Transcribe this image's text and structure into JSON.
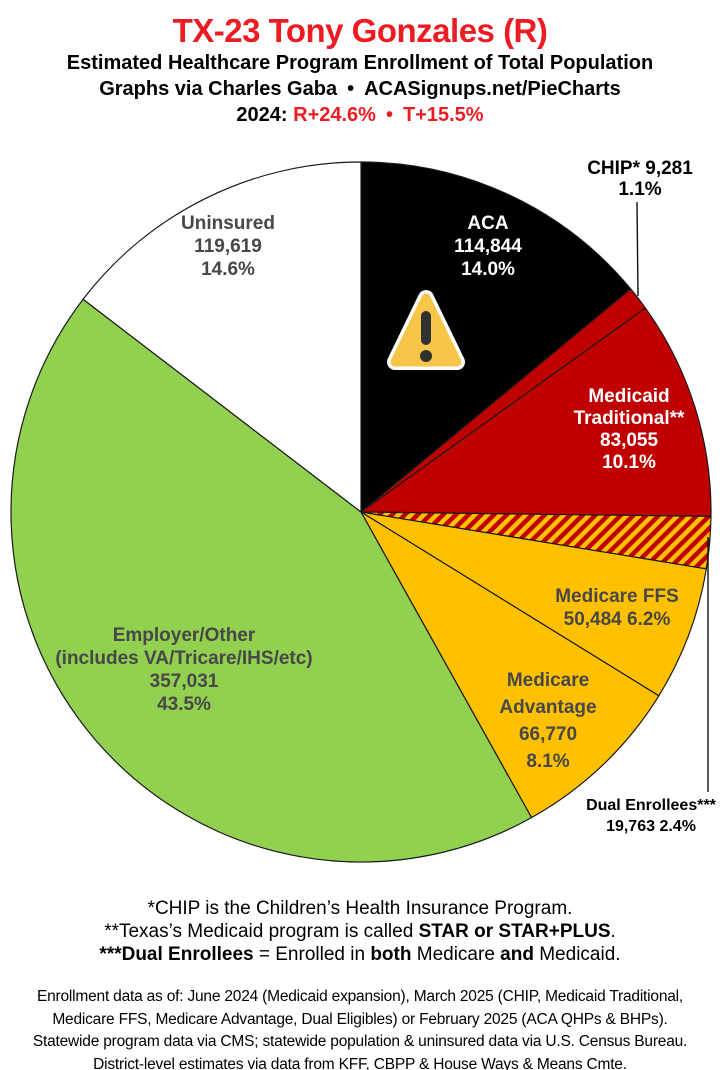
{
  "header": {
    "title": "TX-23 Tony Gonzales (R)",
    "title_color": "#EE1B23",
    "subtitle": "Estimated Healthcare Program Enrollment of Total Population",
    "credit_left": "Graphs via Charles Gaba",
    "credit_bullet": "•",
    "credit_right": "ACASignups.net/PieCharts",
    "partisan_year": "2024:",
    "partisan_r": "R+24.6%",
    "partisan_bullet": "•",
    "partisan_t": "T+15.5%",
    "partisan_color": "#EE1B23"
  },
  "chart_data": {
    "type": "pie",
    "title": "Estimated Healthcare Program Enrollment of Total Population",
    "units": "people",
    "start_angle": "12-oclock",
    "direction": "clockwise",
    "total_pct": 100.0,
    "slice_border_color": "#1A1A1A",
    "slices": [
      {
        "id": "aca",
        "name": "ACA",
        "value": 114844,
        "pct": 14.0,
        "color": "#000000",
        "label_color": "#FFFFFF",
        "label_lines": [
          "ACA",
          "114,844",
          "14.0%"
        ]
      },
      {
        "id": "chip",
        "name": "CHIP",
        "value": 9281,
        "pct": 1.1,
        "color": "#C00000",
        "label_color": "#000000",
        "label_lines": [
          "CHIP* 9,281",
          "1.1%"
        ]
      },
      {
        "id": "medicaid-traditional",
        "name": "Medicaid Traditional",
        "value": 83055,
        "pct": 10.1,
        "color": "#C00000",
        "label_color": "#FFFFFF",
        "label_lines": [
          "Medicaid",
          "Traditional**",
          "83,055",
          "10.1%"
        ]
      },
      {
        "id": "dual-enrollees",
        "name": "Dual Enrollees",
        "value": 19763,
        "pct": 2.4,
        "color": "hatch",
        "hatch": {
          "bg": "#FFC000",
          "fg": "#C00000"
        },
        "label_color": "#000000",
        "label_lines": [
          "Dual Enrollees***",
          "19,763 2.4%"
        ]
      },
      {
        "id": "medicare-ffs",
        "name": "Medicare FFS",
        "value": 50484,
        "pct": 6.2,
        "color": "#FFC000",
        "label_color": "#474747",
        "label_lines": [
          "Medicare FFS",
          "50,484 6.2%"
        ]
      },
      {
        "id": "medicare-advantage",
        "name": "Medicare Advantage",
        "value": 66770,
        "pct": 8.1,
        "color": "#FFC000",
        "label_color": "#474747",
        "label_lines": [
          "Medicare",
          "Advantage",
          "66,770",
          "8.1%"
        ]
      },
      {
        "id": "employer-other",
        "name": "Employer/Other",
        "value": 357031,
        "pct": 43.5,
        "color": "#92D050",
        "label_color": "#474747",
        "label_lines": [
          "Employer/Other",
          "(includes VA/Tricare/IHS/etc)",
          "357,031",
          "43.5%"
        ]
      },
      {
        "id": "uninsured",
        "name": "Uninsured",
        "value": 119619,
        "pct": 14.6,
        "color": "#FFFFFF",
        "label_color": "#474747",
        "label_lines": [
          "Uninsured",
          "119,619",
          "14.6%"
        ]
      }
    ],
    "warning_icon": {
      "fill": "#F7C548",
      "glyph": "#303030",
      "border": "#FFFFFF"
    }
  },
  "footnotes": [
    [
      {
        "text": "*CHIP is the Children’s Health Insurance Program.",
        "bold": false
      }
    ],
    [
      {
        "text": "**Texas’s Medicaid program is called ",
        "bold": false
      },
      {
        "text": "STAR or STAR+PLUS",
        "bold": true
      },
      {
        "text": ".",
        "bold": false
      }
    ],
    [
      {
        "text": "***Dual Enrollees",
        "bold": true
      },
      {
        "text": " = Enrolled in ",
        "bold": false
      },
      {
        "text": "both",
        "bold": true
      },
      {
        "text": " Medicare ",
        "bold": false
      },
      {
        "text": "and",
        "bold": true
      },
      {
        "text": " Medicaid.",
        "bold": false
      }
    ]
  ],
  "source_lines": [
    "Enrollment data as of: June 2024 (Medicaid expansion), March 2025 (CHIP, Medicaid Traditional,",
    "Medicare FFS, Medicare Advantage, Dual Eligibles) or February 2025 (ACA QHPs & BHPs).",
    "Statewide program data via CMS; statewide population & uninsured data via U.S. Census Bureau.",
    "District-level estimates via data from KFF, CBPP & House Ways & Means Cmte."
  ]
}
